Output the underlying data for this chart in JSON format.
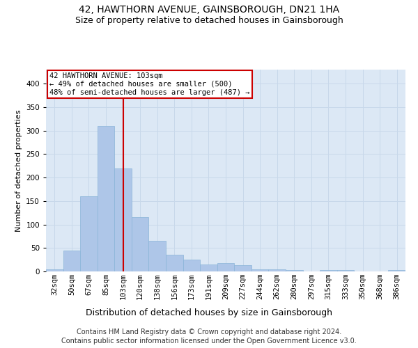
{
  "title": "42, HAWTHORN AVENUE, GAINSBOROUGH, DN21 1HA",
  "subtitle": "Size of property relative to detached houses in Gainsborough",
  "xlabel": "Distribution of detached houses by size in Gainsborough",
  "ylabel": "Number of detached properties",
  "categories": [
    "32sqm",
    "50sqm",
    "67sqm",
    "85sqm",
    "103sqm",
    "120sqm",
    "138sqm",
    "156sqm",
    "173sqm",
    "191sqm",
    "209sqm",
    "227sqm",
    "244sqm",
    "262sqm",
    "280sqm",
    "297sqm",
    "315sqm",
    "333sqm",
    "350sqm",
    "368sqm",
    "386sqm"
  ],
  "values": [
    5,
    45,
    160,
    310,
    220,
    115,
    65,
    35,
    25,
    15,
    18,
    13,
    5,
    5,
    3,
    0,
    3,
    3,
    0,
    0,
    3
  ],
  "bar_color": "#aec6e8",
  "bar_edge_color": "#8ab4d8",
  "vline_x_index": 4,
  "vline_color": "#cc0000",
  "annotation_text": "42 HAWTHORN AVENUE: 103sqm\n← 49% of detached houses are smaller (500)\n48% of semi-detached houses are larger (487) →",
  "annotation_box_facecolor": "#ffffff",
  "annotation_box_edgecolor": "#cc0000",
  "ylim": [
    0,
    430
  ],
  "yticks": [
    0,
    50,
    100,
    150,
    200,
    250,
    300,
    350,
    400
  ],
  "grid_color": "#c8d8ea",
  "background_color": "#dce8f5",
  "footer_line1": "Contains HM Land Registry data © Crown copyright and database right 2024.",
  "footer_line2": "Contains public sector information licensed under the Open Government Licence v3.0.",
  "title_fontsize": 10,
  "subtitle_fontsize": 9,
  "xlabel_fontsize": 9,
  "ylabel_fontsize": 8,
  "tick_fontsize": 7.5,
  "annotation_fontsize": 7.5,
  "footer_fontsize": 7
}
